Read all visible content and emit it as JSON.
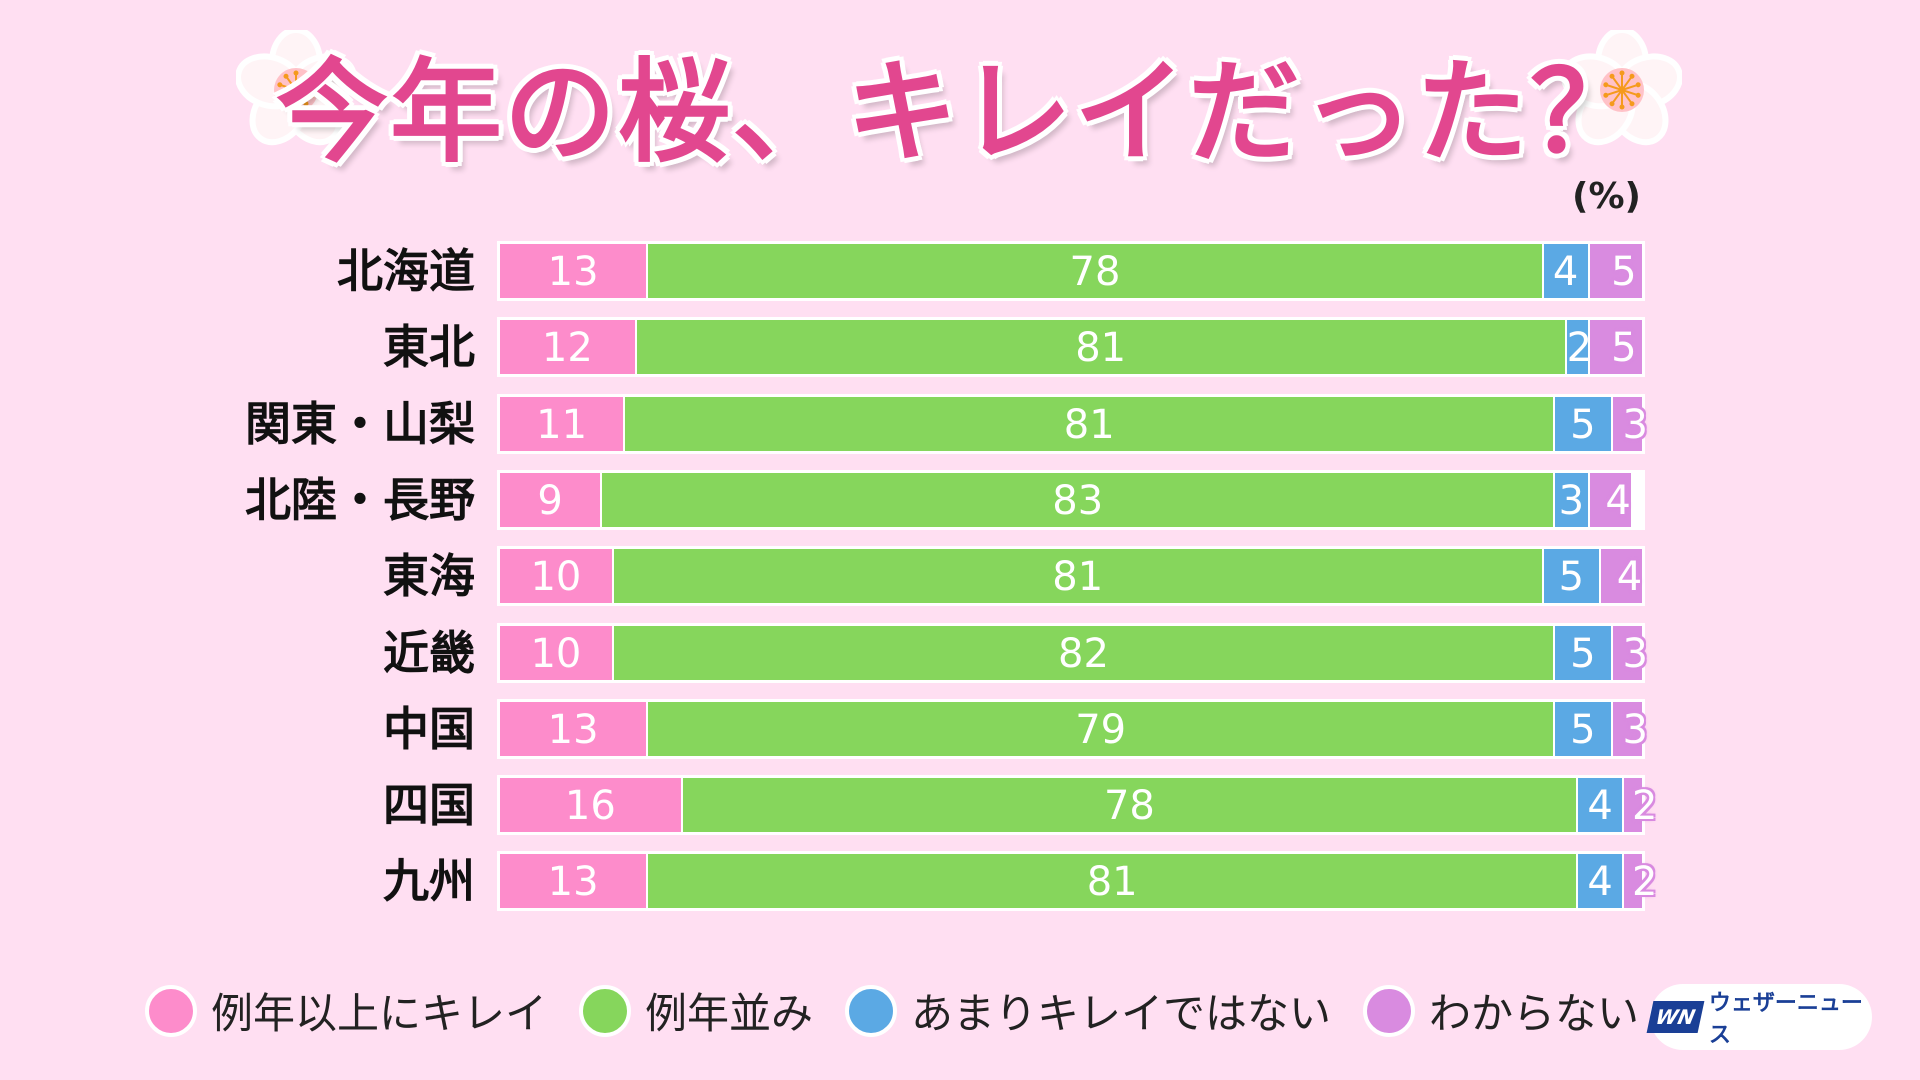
{
  "title": "今年の桜、キレイだった？",
  "unit_label": "(%)",
  "logo_mark": "WN",
  "logo_text": "ウェザーニュース",
  "colors": {
    "background": "#ffdff2",
    "title": "#e2478f",
    "series": [
      "#fd8ccb",
      "#86d65c",
      "#5ba9e4",
      "#d98be0"
    ]
  },
  "chart_data": {
    "type": "bar",
    "stacked": true,
    "orientation": "horizontal",
    "title": "今年の桜、キレイだった？",
    "xlabel": "(%)",
    "xlim": [
      0,
      100
    ],
    "categories": [
      "北海道",
      "東北",
      "関東・山梨",
      "北陸・長野",
      "東海",
      "近畿",
      "中国",
      "四国",
      "九州"
    ],
    "series": [
      {
        "name": "例年以上にキレイ",
        "values": [
          13,
          12,
          11,
          9,
          10,
          10,
          13,
          16,
          13
        ]
      },
      {
        "name": "例年並み",
        "values": [
          78,
          81,
          81,
          83,
          81,
          82,
          79,
          78,
          81
        ]
      },
      {
        "name": "あまりキレイではない",
        "values": [
          4,
          2,
          5,
          3,
          5,
          5,
          5,
          4,
          4
        ]
      },
      {
        "name": "わからない",
        "values": [
          5,
          5,
          3,
          4,
          4,
          3,
          3,
          2,
          2
        ]
      }
    ],
    "legend_position": "bottom"
  }
}
